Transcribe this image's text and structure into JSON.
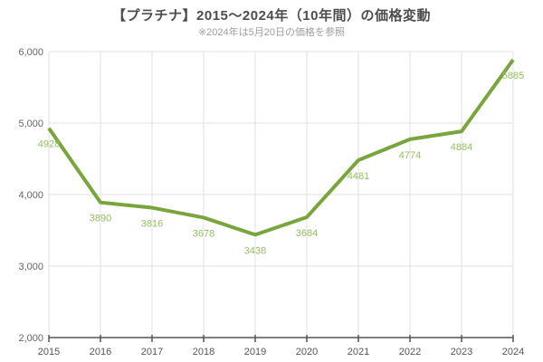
{
  "header": {
    "title": "【プラチナ】2015～2024年（10年間）の価格変動",
    "subtitle": "※2024年は5月20日の価格を参照"
  },
  "chart_data": {
    "type": "line",
    "title": "【プラチナ】2015～2024年（10年間）の価格変動",
    "subtitle": "※2024年は5月20日の価格を参照",
    "categories": [
      "2015",
      "2016",
      "2017",
      "2018",
      "2019",
      "2020",
      "2021",
      "2022",
      "2023",
      "2024"
    ],
    "values": [
      4928,
      3890,
      3816,
      3678,
      3438,
      3684,
      4481,
      4774,
      4884,
      5885
    ],
    "data_labels": [
      "4928",
      "3890",
      "3816",
      "3678",
      "3438",
      "3684",
      "4481",
      "4774",
      "4884",
      "5885"
    ],
    "xlabel": "",
    "ylabel": "",
    "ylim": [
      2000,
      6000
    ],
    "ytick_values": [
      2000,
      3000,
      4000,
      5000,
      6000
    ],
    "ytick_labels": [
      "2,000",
      "3,000",
      "4,000",
      "5,000",
      "6,000"
    ],
    "grid": true,
    "legend": false,
    "colors": {
      "line": "#7aa53c",
      "data_label": "#94bf5f",
      "grid": "#e0e0e0",
      "axis": "#555555",
      "tick_label": "#666666"
    }
  }
}
